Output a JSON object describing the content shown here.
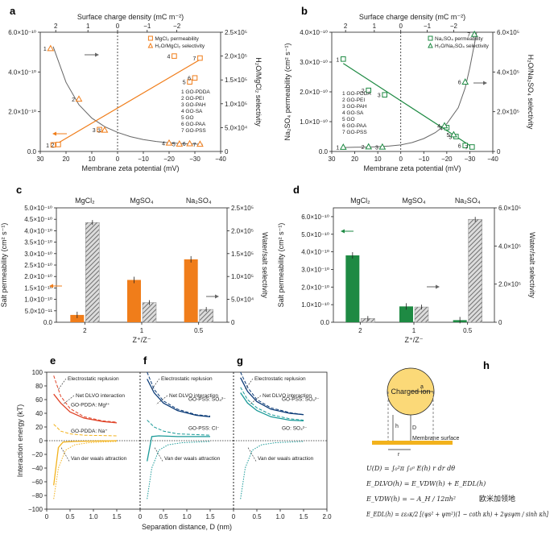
{
  "watermark": "欧米加领地",
  "colors": {
    "orange": "#f07d1a",
    "green": "#1e8a43",
    "gray": "#666666",
    "hatch": "#8a8a8a",
    "red": "#e0452a",
    "blue": "#0c3c78",
    "teal": "#1a9a98",
    "yellow": "#f2b21c"
  },
  "chart_data": [
    {
      "id": "a",
      "label": "a",
      "type": "scatter",
      "top_axis": {
        "label": "Surface charge density (mC m⁻²)",
        "ticks": [
          "2",
          "1",
          "0",
          "−1",
          "−2"
        ]
      },
      "xlabel": "Membrane zeta potential (mV)",
      "xlim": [
        30,
        -40
      ],
      "xticks": [
        "30",
        "20",
        "10",
        "0",
        "−10",
        "−20",
        "−30",
        "−40"
      ],
      "ylabel": "MgCl₂ permeability (cm² s⁻¹)",
      "ylim": [
        0,
        6e-10
      ],
      "yticks": [
        "0.0",
        "2.0×10⁻¹⁰",
        "4.0×10⁻¹⁰",
        "6.0×10⁻¹⁰"
      ],
      "y2label": "H₂O/MgCl₂ selectivity",
      "y2lim": [
        0,
        250000
      ],
      "y2ticks": [
        "0",
        "5.0×10⁴",
        "1.0×10⁵",
        "1.5×10⁵",
        "2.0×10⁵",
        "2.5×10⁵"
      ],
      "legend": [
        "MgCl₂ permeability",
        "H₂O/MgCl₂ selectivity"
      ],
      "materials": [
        "1 GO-PDDA",
        "2 GO-PEI",
        "3 GO-PAH",
        "4 GO-SA",
        "5 GO",
        "6 GO-PAA",
        "7 GO-PSS"
      ],
      "permeability": [
        {
          "n": "1",
          "x": 25,
          "y": 3.3e-11
        },
        {
          "n": "2",
          "x": 23,
          "y": 3.5e-11
        },
        {
          "n": "3",
          "x": 7,
          "y": 1.1e-10
        },
        {
          "n": "4",
          "x": -22,
          "y": 4.8e-10
        },
        {
          "n": "5",
          "x": -28,
          "y": 3.5e-10
        },
        {
          "n": "6",
          "x": -30,
          "y": 3.7e-10
        },
        {
          "n": "7",
          "x": -32,
          "y": 4.7e-10
        }
      ],
      "selectivity": [
        {
          "n": "1",
          "x": 26,
          "y": 216000
        },
        {
          "n": "2",
          "x": 15,
          "y": 110000
        },
        {
          "n": "3",
          "x": 5,
          "y": 45000
        },
        {
          "n": "4",
          "x": -20,
          "y": 18000
        },
        {
          "n": "5",
          "x": -24,
          "y": 16000
        },
        {
          "n": "6",
          "x": -28,
          "y": 16500
        },
        {
          "n": "7",
          "x": -32,
          "y": 15500
        }
      ],
      "fit_line": [
        [
          25,
          2.8e-11
        ],
        [
          -33,
          4.7e-10
        ]
      ],
      "fit_curve": [
        [
          25,
          220000
        ],
        [
          20,
          145000
        ],
        [
          15,
          98000
        ],
        [
          10,
          70000
        ],
        [
          5,
          52000
        ],
        [
          0,
          40000
        ],
        [
          -5,
          31000
        ],
        [
          -10,
          25000
        ],
        [
          -15,
          21000
        ],
        [
          -20,
          18000
        ],
        [
          -25,
          16500
        ],
        [
          -30,
          15500
        ],
        [
          -33,
          15000
        ]
      ]
    },
    {
      "id": "b",
      "label": "b",
      "type": "scatter",
      "top_axis": {
        "label": "Surface charge density (mC m⁻²)",
        "ticks": [
          "2",
          "1",
          "0",
          "−1",
          "−2"
        ]
      },
      "xlabel": "Membrane zeta potential (mV)",
      "xlim": [
        30,
        -40
      ],
      "xticks": [
        "30",
        "20",
        "10",
        "0",
        "−10",
        "−20",
        "−30",
        "−40"
      ],
      "ylabel": "Na₂SO₄ permeability (cm² s⁻¹)",
      "ylim": [
        0,
        4e-10
      ],
      "yticks": [
        "0.0",
        "1.0×10⁻¹⁰",
        "2.0×10⁻¹⁰",
        "3.0×10⁻¹⁰",
        "4.0×10⁻¹⁰"
      ],
      "y2label": "H₂O/Na₂SO₄ selectivity",
      "y2lim": [
        0,
        600000
      ],
      "y2ticks": [
        "0",
        "2.0×10⁵",
        "4.0×10⁵",
        "6.0×10⁵"
      ],
      "legend": [
        "Na₂SO₄ permeability",
        "H₂O/Na₂SO₄ selectivity"
      ],
      "materials": [
        "1 GO-PDDA",
        "2 GO-PEI",
        "3 GO-PAH",
        "4 GO-SA",
        "5 GO",
        "6 GO-PAA",
        "7 GO-PSS"
      ],
      "permeability": [
        {
          "n": "1",
          "x": 25,
          "y": 3.1e-10
        },
        {
          "n": "2",
          "x": 14,
          "y": 2.05e-10
        },
        {
          "n": "3",
          "x": 7,
          "y": 1.9e-10
        },
        {
          "n": "4",
          "x": -20,
          "y": 8e-11
        },
        {
          "n": "5",
          "x": -24,
          "y": 5e-11
        },
        {
          "n": "6",
          "x": -28,
          "y": 2e-11
        },
        {
          "n": "7",
          "x": -31,
          "y": 1.5e-11
        }
      ],
      "selectivity": [
        {
          "n": "1",
          "x": 25,
          "y": 22000
        },
        {
          "n": "2",
          "x": 14,
          "y": 24000
        },
        {
          "n": "3",
          "x": 8,
          "y": 23000
        },
        {
          "n": "4",
          "x": -19,
          "y": 130000
        },
        {
          "n": "5",
          "x": -23,
          "y": 85000
        },
        {
          "n": "6",
          "x": -28,
          "y": 350000
        },
        {
          "n": "7",
          "x": -32,
          "y": 590000
        }
      ],
      "fit_line": [
        [
          25,
          2.95e-10
        ],
        [
          -32,
          1e-11
        ]
      ],
      "fit_curve": [
        [
          25,
          20000
        ],
        [
          20,
          21000
        ],
        [
          15,
          22000
        ],
        [
          10,
          24000
        ],
        [
          5,
          27000
        ],
        [
          0,
          33000
        ],
        [
          -5,
          45000
        ],
        [
          -10,
          65000
        ],
        [
          -15,
          95000
        ],
        [
          -20,
          140000
        ],
        [
          -25,
          220000
        ],
        [
          -28,
          320000
        ],
        [
          -30,
          420000
        ],
        [
          -33,
          600000
        ]
      ]
    },
    {
      "id": "c",
      "label": "c",
      "type": "bar",
      "categories": [
        "2",
        "1",
        "0.5"
      ],
      "top_categories": [
        "MgCl₂",
        "MgSO₄",
        "Na₂SO₄"
      ],
      "xlabel": "Z⁺/Z⁻",
      "ylabel": "Salt permeability (cm² s⁻¹)",
      "ylim": [
        0,
        5e-10
      ],
      "yticks": [
        "0.0",
        "5.0×10⁻¹¹",
        "1.0×10⁻¹⁰",
        "1.5×10⁻¹⁰",
        "2.0×10⁻¹⁰",
        "2.5×10⁻¹⁰",
        "3.0×10⁻¹⁰",
        "3.5×10⁻¹⁰",
        "4.0×10⁻¹⁰",
        "4.5×10⁻¹⁰",
        "5.0×10⁻¹⁰"
      ],
      "y2label": "Water/salt selectivity",
      "y2lim": [
        0,
        250000
      ],
      "y2ticks": [
        "0",
        "5.0×10⁴",
        "1.0×10⁵",
        "1.5×10⁵",
        "2.0×10⁵",
        "2.5×10⁵"
      ],
      "permeability": [
        3.2e-11,
        1.85e-10,
        2.75e-10
      ],
      "selectivity": [
        218000,
        43000,
        28000
      ]
    },
    {
      "id": "d",
      "label": "d",
      "type": "bar",
      "categories": [
        "2",
        "1",
        "0.5"
      ],
      "top_categories": [
        "MgCl₂",
        "MgSO₄",
        "Na₂SO₄"
      ],
      "xlabel": "Z⁺/Z⁻",
      "ylabel": "Salt permeability (cm² s⁻¹)",
      "ylim": [
        0,
        6.5e-10
      ],
      "yticks": [
        "0.0",
        "1.0×10⁻¹⁰",
        "2.0×10⁻¹⁰",
        "3.0×10⁻¹⁰",
        "4.0×10⁻¹⁰",
        "5.0×10⁻¹⁰",
        "6.0×10⁻¹⁰"
      ],
      "y2label": "Water/salt selectivity",
      "y2lim": [
        0,
        600000
      ],
      "y2ticks": [
        "0",
        "2.0×10⁵",
        "4.0×10⁵",
        "6.0×10⁵"
      ],
      "permeability": [
        3.8e-10,
        9e-11,
        1.2e-11
      ],
      "selectivity": [
        20000,
        80000,
        540000
      ]
    },
    {
      "id": "efg",
      "type": "line",
      "labels": [
        "e",
        "f",
        "g"
      ],
      "xlabel": "Separation distance, D (nm)",
      "xlim": [
        0,
        2.0
      ],
      "xticks": [
        "0",
        "0.5",
        "1.0",
        "1.5",
        "0",
        "0.5",
        "1.0",
        "1.5",
        "0",
        "0.5",
        "1.0",
        "1.5",
        "2.0"
      ],
      "ylabel": "Interaction energy (kT)",
      "ylim": [
        -100,
        100
      ],
      "yticks": [
        "100",
        "80",
        "60",
        "40",
        "20",
        "0",
        "−20",
        "−40",
        "−60",
        "−80",
        "−100"
      ],
      "annotations": {
        "e": [
          "Electrostatic replusion",
          "Net DLVO interaction",
          "GO-PDDA: Mg²⁺",
          "GO-PDDA: Na⁺",
          "Van der waals attraction"
        ],
        "f": [
          "Electrostatic replusion",
          "Net DLVO interaction",
          "GO-PSS: SO₄²⁻",
          "GO-PSS: Cl⁻",
          "Van der waals attraction"
        ],
        "g": [
          "Electrostatic replusion",
          "Net DLVO interaction",
          "GO-PSS: SO₄²⁻",
          "GO: SO₄²⁻",
          "Van der waals attraction"
        ]
      },
      "series": {
        "e": [
          {
            "name": "GO-PDDA: Mg²⁺",
            "color": "red",
            "solid": [
              [
                0.15,
                68
              ],
              [
                0.3,
                55
              ],
              [
                0.5,
                42
              ],
              [
                0.8,
                33
              ],
              [
                1.2,
                28
              ],
              [
                1.5,
                26
              ]
            ],
            "dashed": [
              [
                0.15,
                95
              ],
              [
                0.3,
                65
              ],
              [
                0.5,
                47
              ],
              [
                0.8,
                35
              ],
              [
                1.2,
                29
              ],
              [
                1.5,
                27
              ]
            ]
          },
          {
            "name": "GO-PDDA: Na⁺",
            "color": "yellow",
            "solid": [
              [
                0.15,
                -65
              ],
              [
                0.25,
                -10
              ],
              [
                0.35,
                -2
              ],
              [
                0.6,
                -1
              ],
              [
                1.5,
                0
              ]
            ],
            "dashed": [
              [
                0.15,
                24
              ],
              [
                0.3,
                14
              ],
              [
                0.5,
                10
              ],
              [
                0.8,
                8
              ],
              [
                1.5,
                7
              ]
            ]
          }
        ],
        "f": [
          {
            "name": "GO-PSS: SO₄²⁻",
            "color": "blue",
            "solid": [
              [
                0.15,
                90
              ],
              [
                0.3,
                70
              ],
              [
                0.5,
                55
              ],
              [
                0.8,
                44
              ],
              [
                1.2,
                37
              ],
              [
                1.5,
                35
              ]
            ],
            "dashed": [
              [
                0.15,
                100
              ],
              [
                0.3,
                75
              ],
              [
                0.5,
                58
              ],
              [
                0.8,
                46
              ],
              [
                1.2,
                38
              ],
              [
                1.5,
                36
              ]
            ]
          },
          {
            "name": "GO-PSS: Cl⁻",
            "color": "teal",
            "solid": [
              [
                0.15,
                -30
              ],
              [
                0.25,
                6
              ],
              [
                0.4,
                7
              ],
              [
                0.8,
                6
              ],
              [
                1.5,
                6
              ]
            ],
            "dashed": [
              [
                0.15,
                30
              ],
              [
                0.3,
                20
              ],
              [
                0.5,
                14
              ],
              [
                0.8,
                10
              ],
              [
                1.5,
                8
              ]
            ]
          }
        ],
        "g": [
          {
            "name": "GO-PSS: SO₄²⁻",
            "color": "blue",
            "solid": [
              [
                0.15,
                92
              ],
              [
                0.3,
                72
              ],
              [
                0.5,
                57
              ],
              [
                0.8,
                46
              ],
              [
                1.2,
                40
              ],
              [
                1.5,
                38
              ]
            ],
            "dashed": [
              [
                0.15,
                100
              ],
              [
                0.3,
                78
              ],
              [
                0.5,
                60
              ],
              [
                0.8,
                48
              ],
              [
                1.2,
                41
              ],
              [
                1.5,
                38
              ]
            ]
          },
          {
            "name": "GO: SO₄²⁻",
            "color": "teal",
            "solid": [
              [
                0.15,
                70
              ],
              [
                0.3,
                55
              ],
              [
                0.5,
                44
              ],
              [
                0.8,
                35
              ],
              [
                1.2,
                30
              ],
              [
                1.5,
                29
              ]
            ],
            "dashed": [
              [
                0.15,
                78
              ],
              [
                0.3,
                60
              ],
              [
                0.5,
                48
              ],
              [
                0.8,
                38
              ],
              [
                1.2,
                32
              ],
              [
                1.5,
                30
              ]
            ]
          }
        ]
      },
      "vdw": [
        [
          0.15,
          -85
        ],
        [
          0.25,
          -40
        ],
        [
          0.4,
          -14
        ],
        [
          0.6,
          -6
        ],
        [
          0.9,
          -3
        ],
        [
          1.5,
          -1
        ]
      ]
    },
    {
      "id": "h",
      "label": "h",
      "type": "diagram",
      "labels": [
        "Charged ion",
        "Membrane surface",
        "a",
        "h",
        "D",
        "r"
      ],
      "equations": [
        "U(D) = ∫₀²π ∫₀ᵃ E(h) r dr dθ",
        "E_DLVO(h) = E_VDW(h) + E_EDL(h)",
        "E_VDW(h) = − A_H / 12πh²",
        "E_EDL(h) = εε₀κ/2 [(ψs² + ψm²)(1 − coth κh) + 2ψsψm / sinh κh]"
      ]
    }
  ]
}
